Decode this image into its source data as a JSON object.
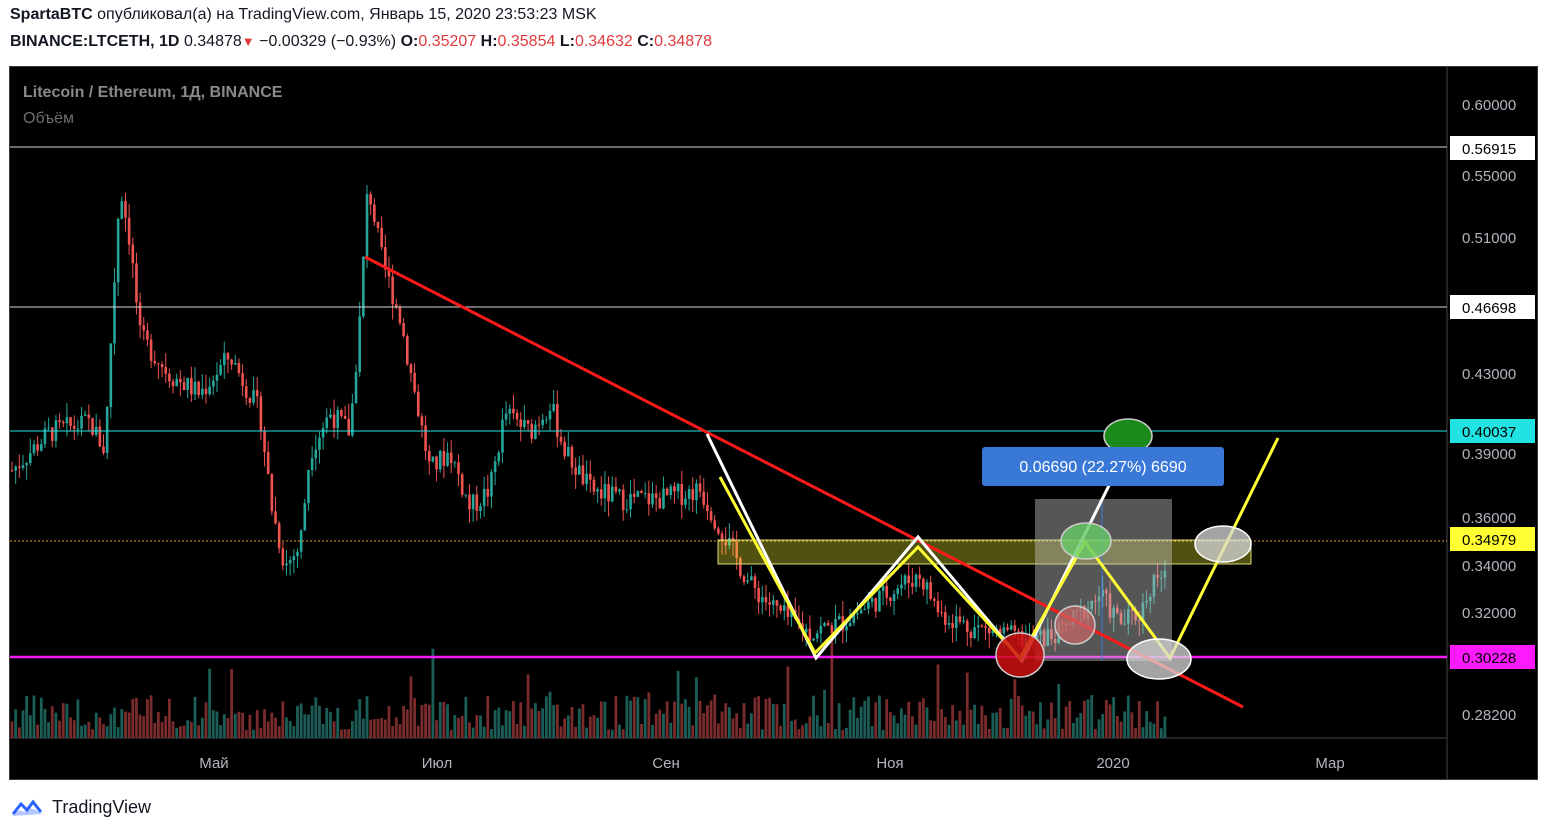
{
  "header": {
    "author": "SpartaBTC",
    "published_text": "опубликовал(а) на TradingView.com, Январь 15, 2020 23:53:23 MSK",
    "symbol": "BINANCE:LTCETH, 1D",
    "last": "0.34878",
    "change": "−0.00329 (−0.93%)",
    "o_label": "O:",
    "o": "0.35207",
    "h_label": "H:",
    "h": "0.35854",
    "l_label": "L:",
    "l": "0.34632",
    "c_label": "C:",
    "c": "0.34878"
  },
  "chart_data": {
    "type": "candlestick",
    "legend_title": "Litecoin / Ethereum, 1Д, BINANCE",
    "legend_volume": "Объём",
    "y_ticks": [
      "0.60000",
      "0.55000",
      "0.51000",
      "0.43000",
      "0.39000",
      "0.36000",
      "0.34000",
      "0.32000",
      "0.28200"
    ],
    "x_ticks": [
      "Май",
      "Июл",
      "Сен",
      "Ноя",
      "2020",
      "Мар"
    ],
    "price_labels": [
      {
        "value": "0.56915",
        "color": "#ffffff",
        "text_color": "#000000"
      },
      {
        "value": "0.46698",
        "color": "#ffffff",
        "text_color": "#000000"
      },
      {
        "value": "0.40037",
        "color": "#22e3e3",
        "text_color": "#000000"
      },
      {
        "value": "0.34979",
        "color": "#ffff33",
        "text_color": "#000000"
      },
      {
        "value": "0.30228",
        "color": "#ff19ff",
        "text_color": "#000000"
      }
    ],
    "measure_label": "0.06690 (22.27%) 6690",
    "horizontal_levels": [
      0.56915,
      0.46698,
      0.40037,
      0.34979,
      0.30228
    ],
    "colors": {
      "up": "#26a69a",
      "down": "#ef5350",
      "trend": "#ff1a1a",
      "zone": "#ffff33",
      "measure": "#3a78d8"
    }
  },
  "footer": {
    "brand": "TradingView"
  }
}
